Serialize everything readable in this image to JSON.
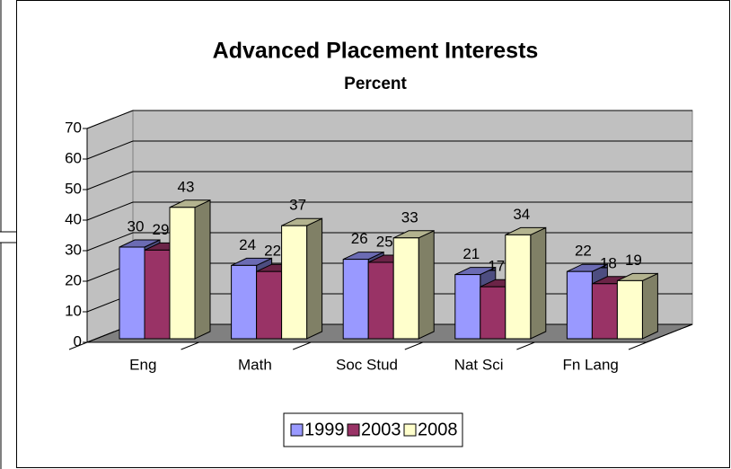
{
  "chart_data": {
    "type": "bar3d",
    "title": "Advanced Placement Interests",
    "subtitle": "Percent",
    "categories": [
      "Eng",
      "Math",
      "Soc Stud",
      "Nat Sci",
      "Fn Lang"
    ],
    "series": [
      {
        "name": "1999",
        "color": "#9999ff",
        "values": [
          30,
          24,
          26,
          21,
          22
        ]
      },
      {
        "name": "2003",
        "color": "#993366",
        "values": [
          29,
          22,
          25,
          17,
          18
        ]
      },
      {
        "name": "2008",
        "color": "#ffffcc",
        "values": [
          43,
          37,
          33,
          34,
          19
        ]
      }
    ],
    "ylim": [
      0,
      70
    ],
    "yticks": [
      0,
      10,
      20,
      30,
      40,
      50,
      60,
      70
    ],
    "grid": true,
    "legend": "bottom"
  }
}
